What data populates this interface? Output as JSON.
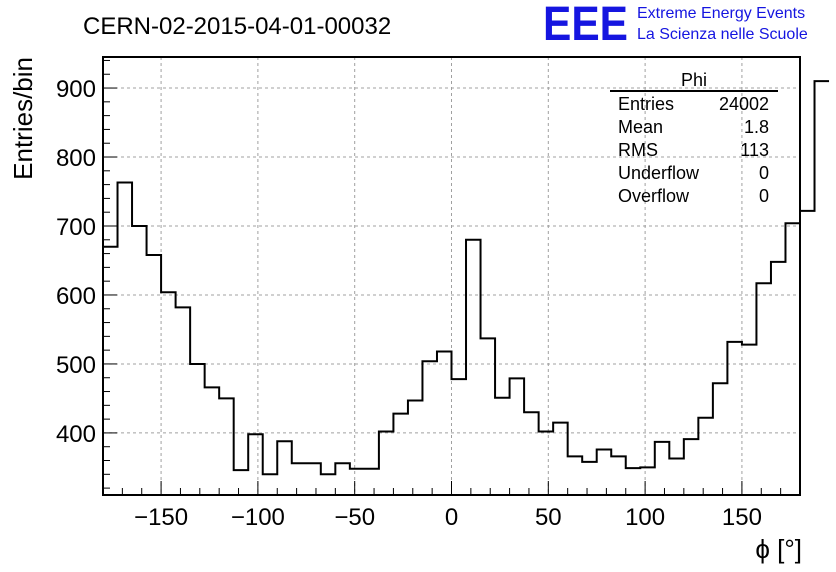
{
  "chart_data": {
    "type": "histogram",
    "title": "CERN-02-2015-04-01-00032",
    "xlabel": "ϕ [°]",
    "ylabel": "Entries/bin",
    "xlim": [
      -180,
      180
    ],
    "ylim": [
      310,
      945
    ],
    "grid": true,
    "bin_edges_start": -180,
    "bin_width": 7.5,
    "bin_values": [
      670,
      763,
      700,
      658,
      604,
      582,
      500,
      466,
      450,
      346,
      398,
      340,
      388,
      356,
      356,
      340,
      356,
      348,
      348,
      402,
      428,
      447,
      504,
      518,
      478,
      680,
      537,
      451,
      479,
      430,
      402,
      415,
      366,
      358,
      376,
      366,
      349,
      350,
      387,
      363,
      391,
      422,
      472,
      532,
      528,
      617,
      648,
      704,
      722,
      910
    ],
    "x_ticks": [
      "−150",
      "−100",
      "−50",
      "0",
      "50",
      "100",
      "150"
    ],
    "x_tick_values": [
      -150,
      -100,
      -50,
      0,
      50,
      100,
      150
    ],
    "y_ticks": [
      "400",
      "500",
      "600",
      "700",
      "800",
      "900"
    ],
    "y_tick_values": [
      400,
      500,
      600,
      700,
      800,
      900
    ],
    "stats_box": {
      "title": "Phi",
      "rows": [
        {
          "label": "Entries",
          "value": "24002"
        },
        {
          "label": "Mean",
          "value": "1.8"
        },
        {
          "label": "RMS",
          "value": "113"
        },
        {
          "label": "Underflow",
          "value": "0"
        },
        {
          "label": "Overflow",
          "value": "0"
        }
      ]
    }
  },
  "logo": {
    "letters": "EEE",
    "line1": "Extreme Energy Events",
    "line2": "La Scienza nelle Scuole",
    "color": "#1515e0"
  },
  "colors": {
    "line": "#000000",
    "grid": "#a0a0a0"
  }
}
